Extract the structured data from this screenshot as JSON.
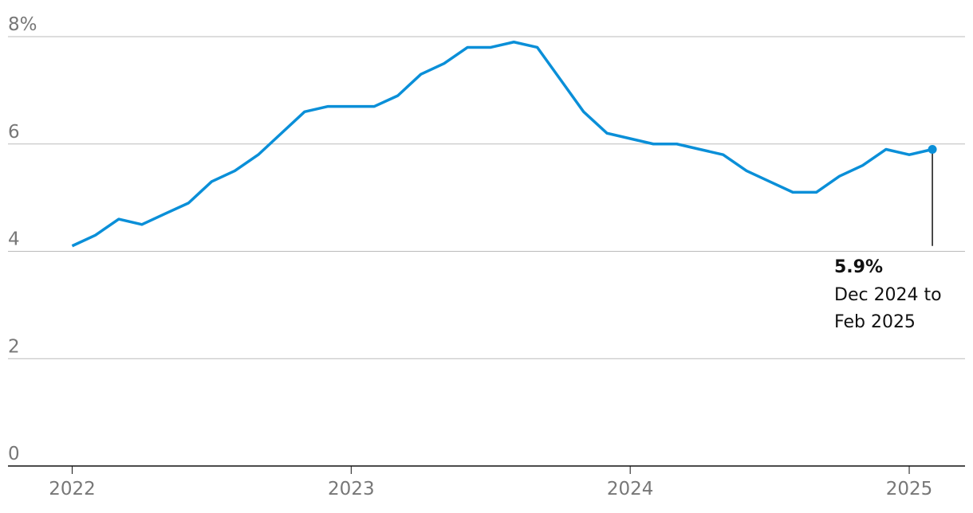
{
  "chart_data": {
    "type": "line",
    "x": [
      2022,
      2022.083,
      2022.167,
      2022.25,
      2022.333,
      2022.417,
      2022.5,
      2022.583,
      2022.667,
      2022.75,
      2022.833,
      2022.917,
      2023,
      2023.083,
      2023.167,
      2023.25,
      2023.333,
      2023.417,
      2023.5,
      2023.583,
      2023.667,
      2023.75,
      2023.833,
      2023.917,
      2024,
      2024.083,
      2024.167,
      2024.25,
      2024.333,
      2024.417,
      2024.5,
      2024.583,
      2024.667,
      2024.75,
      2024.833,
      2024.917,
      2025,
      2025.083
    ],
    "series": [
      {
        "color": "#0a8fd8",
        "values": [
          4.1,
          4.3,
          4.6,
          4.5,
          4.7,
          4.9,
          5.3,
          5.5,
          5.8,
          6.2,
          6.6,
          6.7,
          6.7,
          6.7,
          6.9,
          7.3,
          7.5,
          7.8,
          7.8,
          7.9,
          7.8,
          7.2,
          6.6,
          6.2,
          6.1,
          6.0,
          6.0,
          5.9,
          5.8,
          5.5,
          5.3,
          5.1,
          5.1,
          5.4,
          5.6,
          5.9,
          5.8,
          5.9
        ]
      }
    ],
    "xlim": [
      2021.77,
      2025.2
    ],
    "xticks": [
      2022,
      2023,
      2024,
      2025
    ],
    "ylim": [
      0,
      8
    ],
    "yticks": [
      0,
      2,
      4,
      6,
      {
        "value": 8,
        "label": "8%"
      }
    ],
    "grid": true,
    "annotation": {
      "value_label": "5.9%",
      "lines": [
        "Dec 2024 to",
        "Feb 2025"
      ]
    }
  }
}
